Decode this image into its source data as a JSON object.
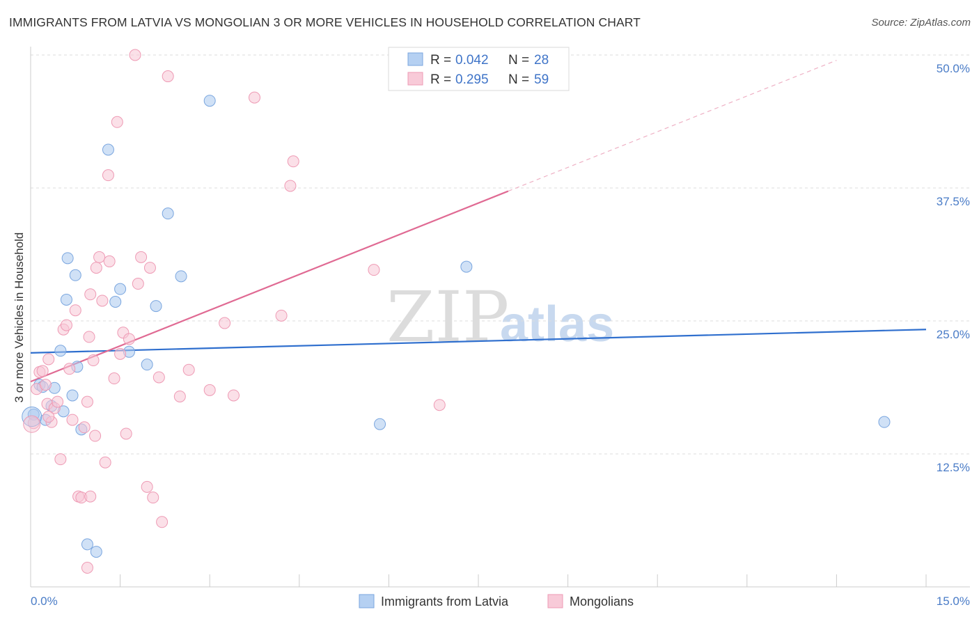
{
  "title": "IMMIGRANTS FROM LATVIA VS MONGOLIAN 3 OR MORE VEHICLES IN HOUSEHOLD CORRELATION CHART",
  "source": "Source: ZipAtlas.com",
  "watermark": {
    "zip": "ZIP",
    "atlas": "atlas"
  },
  "chart_data": {
    "type": "scatter",
    "xlabel": "",
    "ylabel": "3 or more Vehicles in Household",
    "xlim": [
      0,
      15
    ],
    "ylim": [
      0,
      50
    ],
    "x_tick_labels": {
      "min": "0.0%",
      "max": "15.0%"
    },
    "y_ticks": [
      {
        "value": 12.5,
        "label": "12.5%"
      },
      {
        "value": 25.0,
        "label": "25.0%"
      },
      {
        "value": 37.5,
        "label": "37.5%"
      },
      {
        "value": 50.0,
        "label": "50.0%"
      }
    ],
    "legend": [
      {
        "r_label": "R =",
        "r_value": "0.042",
        "n_label": "N =",
        "n_value": "28"
      },
      {
        "r_label": "R =",
        "r_value": "0.295",
        "n_label": "N =",
        "n_value": "59"
      }
    ],
    "series": [
      {
        "name": "Immigrants from Latvia",
        "color": "#a9c8ef",
        "stroke": "#7aa6df",
        "line_color": "#2f6fce",
        "trend": {
          "x0": 0,
          "y0": 22.0,
          "x1": 15,
          "y1": 24.2
        },
        "points": [
          [
            0.05,
            16.2
          ],
          [
            0.15,
            19.0
          ],
          [
            0.2,
            18.8
          ],
          [
            0.25,
            15.7
          ],
          [
            0.35,
            17.0
          ],
          [
            0.4,
            18.7
          ],
          [
            0.5,
            22.2
          ],
          [
            0.55,
            16.5
          ],
          [
            0.6,
            27.0
          ],
          [
            0.62,
            30.9
          ],
          [
            0.7,
            18.0
          ],
          [
            0.75,
            29.3
          ],
          [
            0.78,
            20.7
          ],
          [
            0.85,
            14.8
          ],
          [
            0.95,
            4.0
          ],
          [
            1.1,
            3.3
          ],
          [
            1.3,
            41.1
          ],
          [
            1.42,
            26.8
          ],
          [
            1.5,
            28.0
          ],
          [
            1.65,
            22.1
          ],
          [
            1.95,
            20.9
          ],
          [
            2.1,
            26.4
          ],
          [
            2.3,
            35.1
          ],
          [
            2.52,
            29.2
          ],
          [
            3.0,
            45.7
          ],
          [
            5.85,
            15.3
          ],
          [
            7.3,
            30.1
          ],
          [
            14.3,
            15.5
          ]
        ]
      },
      {
        "name": "Mongolians",
        "color": "#f7c6d5",
        "stroke": "#ee9ab4",
        "line_color": "#e06a93",
        "trend": {
          "x0": 0,
          "y0": 19.3,
          "x1": 8.0,
          "y1": 37.2
        },
        "trend_dashed": {
          "x0": 8.0,
          "y0": 37.2,
          "x1": 13.5,
          "y1": 49.5
        },
        "points": [
          [
            0.05,
            15.4
          ],
          [
            0.1,
            18.6
          ],
          [
            0.15,
            20.2
          ],
          [
            0.2,
            20.3
          ],
          [
            0.25,
            19.0
          ],
          [
            0.28,
            17.2
          ],
          [
            0.3,
            21.4
          ],
          [
            0.35,
            15.5
          ],
          [
            0.4,
            16.8
          ],
          [
            0.45,
            17.4
          ],
          [
            0.5,
            12.0
          ],
          [
            0.55,
            24.2
          ],
          [
            0.6,
            24.6
          ],
          [
            0.65,
            20.5
          ],
          [
            0.7,
            15.7
          ],
          [
            0.75,
            26.0
          ],
          [
            0.8,
            8.5
          ],
          [
            0.85,
            8.4
          ],
          [
            0.9,
            15.0
          ],
          [
            0.95,
            17.4
          ],
          [
            0.98,
            23.5
          ],
          [
            1.0,
            27.5
          ],
          [
            1.05,
            21.3
          ],
          [
            1.08,
            14.2
          ],
          [
            1.1,
            30.0
          ],
          [
            1.15,
            31.0
          ],
          [
            1.2,
            26.9
          ],
          [
            1.25,
            11.7
          ],
          [
            1.3,
            38.7
          ],
          [
            1.32,
            30.6
          ],
          [
            1.4,
            19.6
          ],
          [
            1.45,
            43.7
          ],
          [
            1.5,
            21.9
          ],
          [
            1.55,
            23.9
          ],
          [
            1.6,
            14.4
          ],
          [
            1.65,
            23.3
          ],
          [
            1.75,
            50.0
          ],
          [
            1.8,
            28.5
          ],
          [
            1.85,
            31.0
          ],
          [
            1.95,
            9.4
          ],
          [
            2.0,
            30.0
          ],
          [
            2.05,
            8.4
          ],
          [
            2.15,
            19.7
          ],
          [
            2.2,
            6.1
          ],
          [
            2.3,
            48.0
          ],
          [
            2.5,
            17.9
          ],
          [
            2.65,
            20.4
          ],
          [
            3.0,
            18.5
          ],
          [
            3.25,
            24.8
          ],
          [
            3.4,
            18.0
          ],
          [
            3.75,
            46.0
          ],
          [
            4.2,
            25.5
          ],
          [
            4.35,
            37.7
          ],
          [
            4.4,
            40.0
          ],
          [
            5.75,
            29.8
          ],
          [
            6.85,
            17.1
          ],
          [
            0.95,
            1.8
          ],
          [
            1.0,
            8.5
          ],
          [
            0.3,
            16.0
          ]
        ]
      }
    ]
  }
}
